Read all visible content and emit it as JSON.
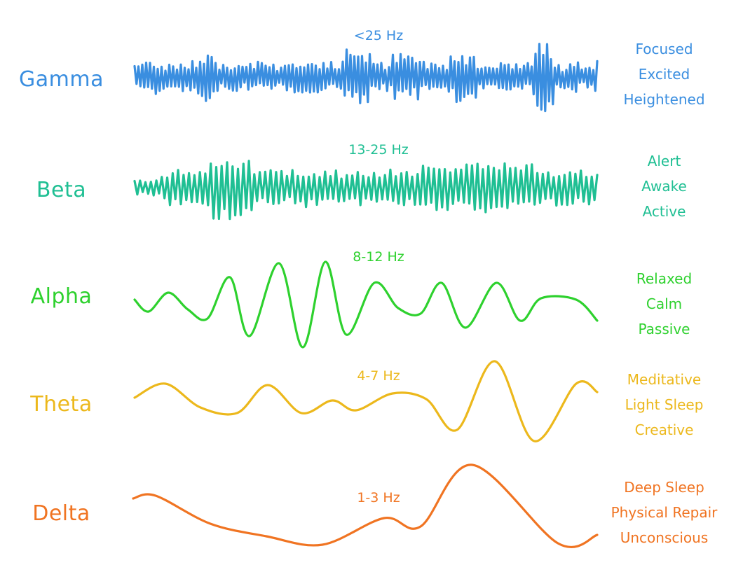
{
  "bands": [
    {
      "name": "Gamma",
      "freq": "<25 Hz",
      "states": [
        "Focused",
        "Excited",
        "Heightened"
      ],
      "color": "#3a8ee0"
    },
    {
      "name": "Beta",
      "freq": "13-25 Hz",
      "states": [
        "Alert",
        "Awake",
        "Active"
      ],
      "color": "#1fbf93"
    },
    {
      "name": "Alpha",
      "freq": "8-12 Hz",
      "states": [
        "Relaxed",
        "Calm",
        "Passive"
      ],
      "color": "#2ed12e"
    },
    {
      "name": "Theta",
      "freq": "4-7 Hz",
      "states": [
        "Meditative",
        "Light Sleep",
        "Creative"
      ],
      "color": "#ecb81c"
    },
    {
      "name": "Delta",
      "freq": "1-3 Hz",
      "states": [
        "Deep Sleep",
        "Physical Repair",
        "Unconscious"
      ],
      "color": "#f07422"
    }
  ]
}
